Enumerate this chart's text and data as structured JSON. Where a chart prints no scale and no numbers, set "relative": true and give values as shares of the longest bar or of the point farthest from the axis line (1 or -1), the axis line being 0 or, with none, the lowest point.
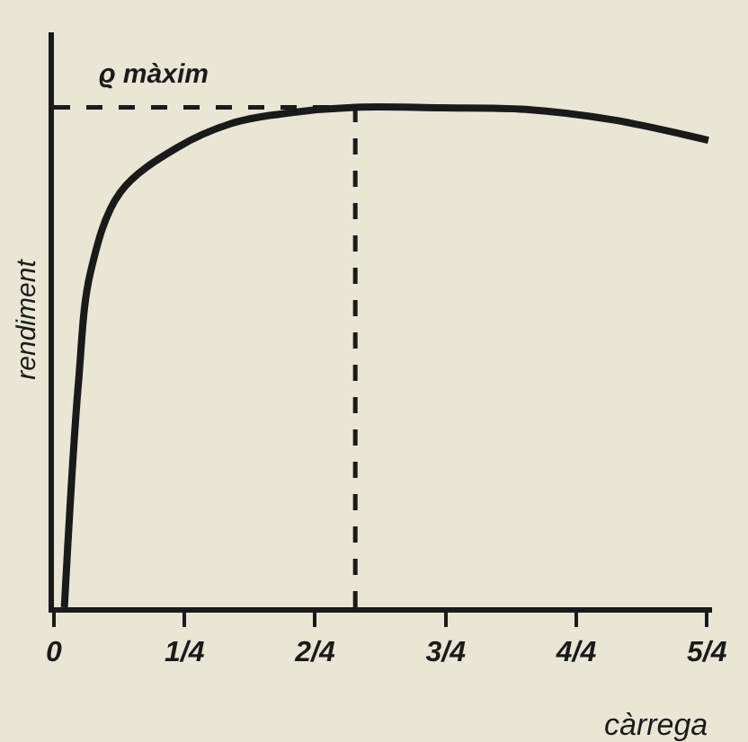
{
  "chart_data": {
    "type": "line",
    "relative": true,
    "xlabel": "càrrega",
    "ylabel": "rendiment",
    "x": [
      0.02,
      0.047,
      0.07,
      0.127,
      0.237,
      0.347,
      0.46,
      0.577,
      0.74,
      0.903,
      1.07,
      1.253
    ],
    "series": [
      {
        "color": "#1a1a1a",
        "values": [
          0,
          0.45,
          0.67,
          0.83,
          0.92,
          0.97,
          0.99,
          1,
          0.999,
          0.996,
          0.975,
          0.934
        ]
      }
    ],
    "xlim": [
      0,
      1.26
    ],
    "xticks": [
      0,
      {
        "value": 0.25,
        "label": "1/4"
      },
      {
        "value": 0.5,
        "label": "2/4"
      },
      {
        "value": 0.75,
        "label": "3/4"
      },
      {
        "value": 1,
        "label": "4/4"
      },
      {
        "value": 1.25,
        "label": "5/4"
      }
    ],
    "ref_lines": [
      {
        "axis": "x",
        "value": 0.577,
        "line_style": "dashed",
        "color": "#1a1a1a"
      },
      {
        "axis": "y",
        "value": 1,
        "line_style": "dashed",
        "color": "#1a1a1a",
        "label": "ϱ màxim"
      }
    ],
    "marker": "none",
    "line_style": "solid"
  }
}
